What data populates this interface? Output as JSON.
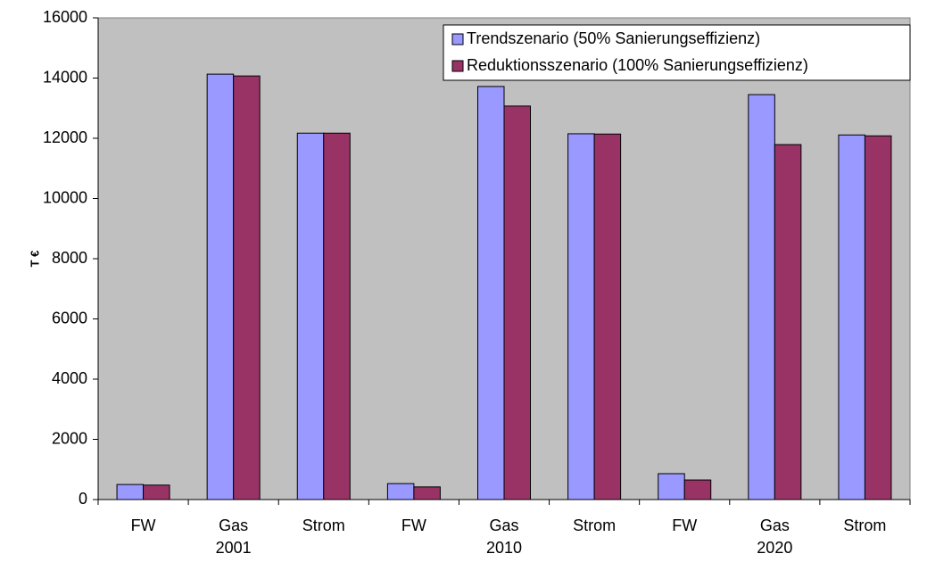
{
  "chart_data": {
    "type": "bar",
    "y_label": "T €",
    "categories": [
      "FW",
      "Gas",
      "Strom",
      "FW",
      "Gas",
      "Strom",
      "FW",
      "Gas",
      "Strom"
    ],
    "groups": [
      "2001",
      "2010",
      "2020"
    ],
    "series": [
      {
        "name": "Trendszenario (50% Sanierungseffizienz)",
        "color": "#9999ff",
        "values": [
          500,
          14130,
          12170,
          530,
          13720,
          12150,
          860,
          13450,
          12110
        ]
      },
      {
        "name": "Reduktionsszenario (100% Sanierungseffizienz)",
        "color": "#993366",
        "values": [
          480,
          14070,
          12170,
          420,
          13070,
          12140,
          650,
          11790,
          12080
        ]
      }
    ],
    "ylim": [
      0,
      16000
    ],
    "yticks": [
      0,
      2000,
      4000,
      6000,
      8000,
      10000,
      12000,
      14000,
      16000
    ],
    "grid": false,
    "legend": "top-right",
    "background": "#c0c0c0"
  }
}
